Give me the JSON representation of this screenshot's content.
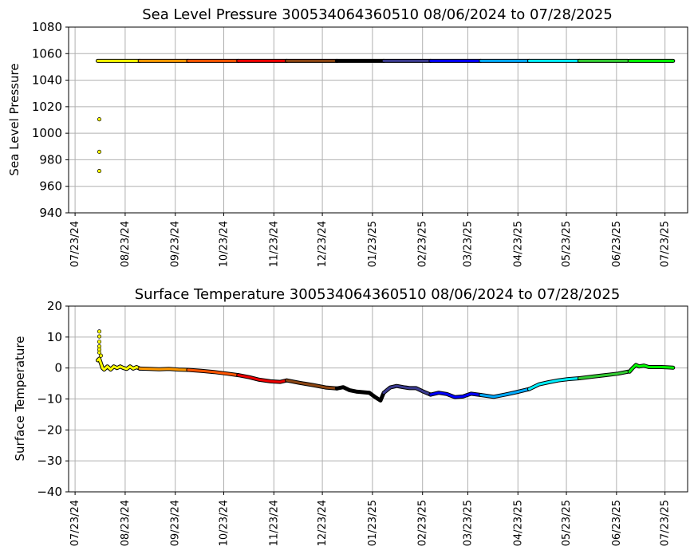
{
  "chart_data": [
    {
      "type": "scatter",
      "title": "Sea Level Pressure 300534064360510  08/06/2024 to 07/28/2025",
      "xlabel": "",
      "ylabel": "Sea Level Pressure",
      "ylim": [
        940,
        1080
      ],
      "yticks": [
        940,
        960,
        980,
        1000,
        1020,
        1040,
        1060,
        1080
      ],
      "xlim": [
        "2024-07-19",
        "2025-08-06"
      ],
      "xticks": [
        "2024-07-23",
        "2024-08-23",
        "2024-09-23",
        "2024-10-23",
        "2024-11-23",
        "2024-12-23",
        "2025-01-23",
        "2025-02-23",
        "2025-03-23",
        "2025-04-23",
        "2025-05-23",
        "2025-06-23",
        "2025-07-23"
      ],
      "xtick_labels": [
        "07/23/24",
        "08/23/24",
        "09/23/24",
        "10/23/24",
        "11/23/24",
        "12/23/24",
        "01/23/25",
        "02/23/25",
        "03/23/25",
        "04/23/25",
        "05/23/25",
        "06/23/25",
        "07/23/25"
      ],
      "grid": true,
      "segments": [
        {
          "start": "2024-08-06",
          "end": "2024-09-01",
          "color": "#ffff00",
          "values": [
            [
              0,
              1054.5
            ],
            [
              26,
              1054.5
            ]
          ]
        },
        {
          "start": "2024-09-01",
          "end": "2024-10-01",
          "color": "#ff9900",
          "values": [
            [
              0,
              1054.5
            ],
            [
              30,
              1054.5
            ]
          ]
        },
        {
          "start": "2024-10-01",
          "end": "2024-11-01",
          "color": "#ff5500",
          "values": [
            [
              0,
              1054.5
            ],
            [
              31,
              1054.5
            ]
          ]
        },
        {
          "start": "2024-11-01",
          "end": "2024-12-01",
          "color": "#ee0000",
          "values": [
            [
              0,
              1054.5
            ],
            [
              30,
              1054.5
            ]
          ]
        },
        {
          "start": "2024-12-01",
          "end": "2025-01-01",
          "color": "#8b4513",
          "values": [
            [
              0,
              1054.5
            ],
            [
              31,
              1054.5
            ]
          ]
        },
        {
          "start": "2025-01-01",
          "end": "2025-01-30",
          "color": "#000000",
          "values": [
            [
              0,
              1054.5
            ],
            [
              29,
              1054.5
            ]
          ]
        },
        {
          "start": "2025-01-30",
          "end": "2025-02-28",
          "color": "#3b3b8f",
          "values": [
            [
              0,
              1054.5
            ],
            [
              29,
              1054.5
            ]
          ]
        },
        {
          "start": "2025-02-28",
          "end": "2025-03-31",
          "color": "#0000ff",
          "values": [
            [
              0,
              1054.5
            ],
            [
              31,
              1054.5
            ]
          ]
        },
        {
          "start": "2025-03-31",
          "end": "2025-04-30",
          "color": "#00aaff",
          "values": [
            [
              0,
              1054.5
            ],
            [
              30,
              1054.5
            ]
          ]
        },
        {
          "start": "2025-04-30",
          "end": "2025-05-31",
          "color": "#00eeff",
          "values": [
            [
              0,
              1054.5
            ],
            [
              31,
              1054.5
            ]
          ]
        },
        {
          "start": "2025-05-31",
          "end": "2025-07-01",
          "color": "#33cc33",
          "values": [
            [
              0,
              1054.5
            ],
            [
              30,
              1054.5
            ]
          ]
        },
        {
          "start": "2025-07-01",
          "end": "2025-07-28",
          "color": "#00ff00",
          "values": [
            [
              0,
              1054.5
            ],
            [
              27,
              1054.5
            ]
          ]
        }
      ],
      "outliers": [
        {
          "x": "2024-08-07",
          "y": 1010.5,
          "color": "#ffff00"
        },
        {
          "x": "2024-08-07",
          "y": 986,
          "color": "#ffff00"
        },
        {
          "x": "2024-08-07",
          "y": 971.5,
          "color": "#ffff00"
        }
      ]
    },
    {
      "type": "scatter",
      "title": "Surface Temperature 300534064360510  08/06/2024 to 07/28/2025",
      "xlabel": "",
      "ylabel": "Surface Temperature",
      "ylim": [
        -40,
        20
      ],
      "yticks": [
        -40,
        -30,
        -20,
        -10,
        0,
        10,
        20
      ],
      "xlim": [
        "2024-07-19",
        "2025-08-06"
      ],
      "xticks": [
        "2024-07-23",
        "2024-08-23",
        "2024-09-23",
        "2024-10-23",
        "2024-11-23",
        "2024-12-23",
        "2025-01-23",
        "2025-02-23",
        "2025-03-23",
        "2025-04-23",
        "2025-05-23",
        "2025-06-23",
        "2025-07-23"
      ],
      "xtick_labels": [
        "07/23/24",
        "08/23/24",
        "09/23/24",
        "10/23/24",
        "11/23/24",
        "12/23/24",
        "01/23/25",
        "02/23/25",
        "03/23/25",
        "04/23/25",
        "05/23/25",
        "06/23/25",
        "07/23/25"
      ],
      "grid": true,
      "segments": [
        {
          "start": "2024-08-06",
          "end": "2024-09-01",
          "color": "#ffff00",
          "values": [
            [
              0,
              2.5
            ],
            [
              1,
              3
            ],
            [
              2,
              1.5
            ],
            [
              3,
              0
            ],
            [
              4,
              -0.5
            ],
            [
              6,
              0.5
            ],
            [
              8,
              -0.5
            ],
            [
              10,
              0.5
            ],
            [
              12,
              0
            ],
            [
              14,
              0.5
            ],
            [
              16,
              0
            ],
            [
              18,
              -0.3
            ],
            [
              20,
              0.5
            ],
            [
              22,
              -0.2
            ],
            [
              24,
              0.3
            ],
            [
              26,
              -0.2
            ]
          ]
        },
        {
          "start": "2024-09-01",
          "end": "2024-10-01",
          "color": "#ff9900",
          "values": [
            [
              0,
              -0.2
            ],
            [
              6,
              -0.3
            ],
            [
              12,
              -0.4
            ],
            [
              18,
              -0.3
            ],
            [
              24,
              -0.5
            ],
            [
              30,
              -0.6
            ]
          ]
        },
        {
          "start": "2024-10-01",
          "end": "2024-11-01",
          "color": "#ff5500",
          "values": [
            [
              0,
              -0.6
            ],
            [
              8,
              -0.9
            ],
            [
              16,
              -1.3
            ],
            [
              24,
              -1.8
            ],
            [
              31,
              -2.3
            ]
          ]
        },
        {
          "start": "2024-11-01",
          "end": "2024-12-01",
          "color": "#ee0000",
          "values": [
            [
              0,
              -2.3
            ],
            [
              7,
              -3
            ],
            [
              13,
              -3.8
            ],
            [
              20,
              -4.3
            ],
            [
              26,
              -4.5
            ],
            [
              30,
              -4
            ]
          ]
        },
        {
          "start": "2024-12-01",
          "end": "2025-01-01",
          "color": "#8b4513",
          "values": [
            [
              0,
              -4
            ],
            [
              8,
              -4.8
            ],
            [
              16,
              -5.5
            ],
            [
              24,
              -6.3
            ],
            [
              31,
              -6.6
            ]
          ]
        },
        {
          "start": "2025-01-01",
          "end": "2025-01-30",
          "color": "#000000",
          "values": [
            [
              0,
              -6.6
            ],
            [
              4,
              -6.2
            ],
            [
              8,
              -7.2
            ],
            [
              12,
              -7.6
            ],
            [
              16,
              -7.8
            ],
            [
              20,
              -8
            ],
            [
              24,
              -9.5
            ],
            [
              27,
              -10.5
            ],
            [
              29,
              -8
            ]
          ]
        },
        {
          "start": "2025-01-30",
          "end": "2025-02-28",
          "color": "#3b3b8f",
          "values": [
            [
              0,
              -8
            ],
            [
              4,
              -6.3
            ],
            [
              8,
              -5.8
            ],
            [
              12,
              -6.2
            ],
            [
              16,
              -6.5
            ],
            [
              20,
              -6.5
            ],
            [
              24,
              -7.5
            ],
            [
              29,
              -8.6
            ]
          ]
        },
        {
          "start": "2025-02-28",
          "end": "2025-03-31",
          "color": "#0000ff",
          "values": [
            [
              0,
              -8.6
            ],
            [
              5,
              -8
            ],
            [
              10,
              -8.4
            ],
            [
              15,
              -9.4
            ],
            [
              20,
              -9.2
            ],
            [
              25,
              -8.3
            ],
            [
              31,
              -8.7
            ]
          ]
        },
        {
          "start": "2025-03-31",
          "end": "2025-04-30",
          "color": "#00aaff",
          "values": [
            [
              0,
              -8.7
            ],
            [
              8,
              -9.3
            ],
            [
              15,
              -8.6
            ],
            [
              22,
              -7.8
            ],
            [
              30,
              -6.8
            ]
          ]
        },
        {
          "start": "2025-04-30",
          "end": "2025-05-31",
          "color": "#00eeff",
          "values": [
            [
              0,
              -6.8
            ],
            [
              6,
              -5.3
            ],
            [
              12,
              -4.6
            ],
            [
              18,
              -4
            ],
            [
              24,
              -3.6
            ],
            [
              31,
              -3.3
            ]
          ]
        },
        {
          "start": "2025-05-31",
          "end": "2025-07-01",
          "color": "#33cc33",
          "values": [
            [
              0,
              -3.3
            ],
            [
              8,
              -2.8
            ],
            [
              16,
              -2.3
            ],
            [
              24,
              -1.8
            ],
            [
              30,
              -1.2
            ]
          ]
        },
        {
          "start": "2025-07-01",
          "end": "2025-07-28",
          "color": "#00ff00",
          "values": [
            [
              0,
              -1.2
            ],
            [
              2,
              0
            ],
            [
              4,
              1
            ],
            [
              6,
              0.5
            ],
            [
              9,
              0.8
            ],
            [
              12,
              0.3
            ],
            [
              16,
              0.3
            ],
            [
              20,
              0.3
            ],
            [
              24,
              0.2
            ],
            [
              27,
              0.1
            ]
          ]
        }
      ],
      "outliers": [
        {
          "x": "2024-08-07",
          "y": 11.8,
          "color": "#ffff00"
        },
        {
          "x": "2024-08-07",
          "y": 10.2,
          "color": "#ffff00"
        },
        {
          "x": "2024-08-07",
          "y": 8.5,
          "color": "#ffff00"
        },
        {
          "x": "2024-08-07",
          "y": 7,
          "color": "#ffff00"
        },
        {
          "x": "2024-08-07",
          "y": 6,
          "color": "#ffff00"
        },
        {
          "x": "2024-08-07",
          "y": 5,
          "color": "#ffff00"
        },
        {
          "x": "2024-08-08",
          "y": 4,
          "color": "#ffff00"
        }
      ]
    }
  ]
}
